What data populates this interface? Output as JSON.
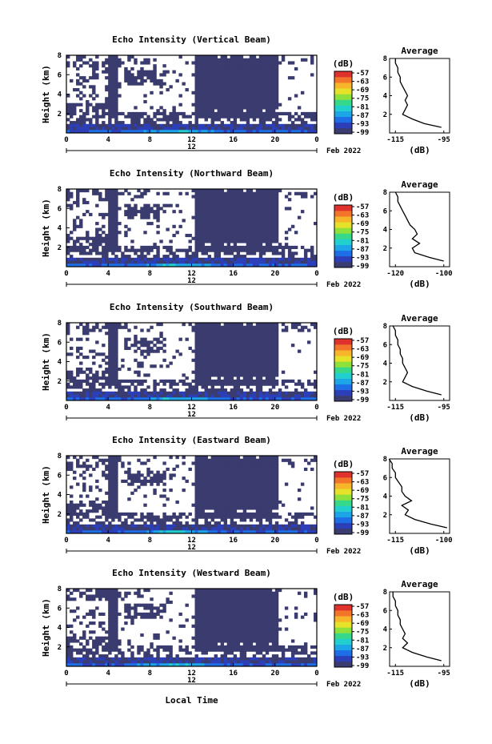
{
  "figure": {
    "xlabel": "Local Time",
    "date_label": "Feb 2022",
    "day_label": "12",
    "avg_title": "Average",
    "unit_label": "(dB)",
    "colormap": [
      "#3a3b6e",
      "#2c3fb8",
      "#1e6fe6",
      "#1ca6e8",
      "#22cfcf",
      "#36d88a",
      "#8ee03a",
      "#e6e22a",
      "#f7b52a",
      "#f2752a",
      "#e0322c"
    ]
  },
  "chart_data": [
    {
      "type": "heatmap",
      "title": "Echo Intensity (Vertical Beam)",
      "ylabel": "Height (km)",
      "xlim": [
        0,
        24
      ],
      "ylim": [
        0,
        8
      ],
      "xticks": [
        "0",
        "4",
        "8",
        "12",
        "16",
        "20",
        "0"
      ],
      "yticks": [
        "2",
        "4",
        "6",
        "8"
      ],
      "colorbar_ticks": [
        "-57",
        "-63",
        "-69",
        "-75",
        "-81",
        "-87",
        "-93",
        "-99"
      ],
      "avg_xticks": [
        "-115",
        "-95"
      ],
      "avg_yticks": [
        "2",
        "4",
        "6",
        "8"
      ],
      "avg_profile": {
        "height_km": [
          0.6,
          1.0,
          1.5,
          2.0,
          2.5,
          3.0,
          3.5,
          4.0,
          4.5,
          5.0,
          5.5,
          6.0,
          6.5,
          7.0,
          7.5,
          8.0
        ],
        "db": [
          -96,
          -103,
          -108,
          -112,
          -111,
          -110,
          -111,
          -110,
          -111,
          -112,
          -113,
          -113,
          -114,
          -114,
          -115,
          -115
        ]
      }
    },
    {
      "type": "heatmap",
      "title": "Echo Intensity (Northward Beam)",
      "ylabel": "Height (km)",
      "xlim": [
        0,
        24
      ],
      "ylim": [
        0,
        8
      ],
      "xticks": [
        "0",
        "4",
        "8",
        "12",
        "16",
        "20",
        "0"
      ],
      "yticks": [
        "2",
        "4",
        "6",
        "8"
      ],
      "colorbar_ticks": [
        "-57",
        "-63",
        "-69",
        "-75",
        "-81",
        "-87",
        "-93",
        "-99"
      ],
      "avg_xticks": [
        "-120",
        "-100"
      ],
      "avg_yticks": [
        "2",
        "4",
        "6",
        "8"
      ],
      "avg_profile": {
        "height_km": [
          0.6,
          1.0,
          1.5,
          2.0,
          2.5,
          3.0,
          3.5,
          4.0,
          4.5,
          5.0,
          5.5,
          6.0,
          6.5,
          7.0,
          7.5,
          8.0
        ],
        "db": [
          -100,
          -106,
          -112,
          -113,
          -110,
          -113,
          -111,
          -112,
          -114,
          -115,
          -116,
          -117,
          -118,
          -119,
          -119,
          -120
        ]
      }
    },
    {
      "type": "heatmap",
      "title": "Echo Intensity (Southward Beam)",
      "ylabel": "Height (km)",
      "xlim": [
        0,
        24
      ],
      "ylim": [
        0,
        8
      ],
      "xticks": [
        "0",
        "4",
        "8",
        "12",
        "16",
        "20",
        "0"
      ],
      "yticks": [
        "2",
        "4",
        "6",
        "8"
      ],
      "colorbar_ticks": [
        "-57",
        "-63",
        "-69",
        "-75",
        "-81",
        "-87",
        "-93",
        "-99"
      ],
      "avg_xticks": [
        "-115",
        "-95"
      ],
      "avg_yticks": [
        "2",
        "4",
        "6",
        "8"
      ],
      "avg_profile": {
        "height_km": [
          0.6,
          1.0,
          1.5,
          2.0,
          2.5,
          3.0,
          3.5,
          4.0,
          4.5,
          5.0,
          5.5,
          6.0,
          6.5,
          7.0,
          7.5,
          8.0
        ],
        "db": [
          -96,
          -102,
          -108,
          -112,
          -111,
          -110,
          -111,
          -112,
          -112,
          -113,
          -113,
          -114,
          -114,
          -115,
          -115,
          -116
        ]
      }
    },
    {
      "type": "heatmap",
      "title": "Echo Intensity (Eastward Beam)",
      "ylabel": "Height (km)",
      "xlim": [
        0,
        24
      ],
      "ylim": [
        0,
        8
      ],
      "xticks": [
        "0",
        "4",
        "8",
        "12",
        "16",
        "20",
        "0"
      ],
      "yticks": [
        "2",
        "4",
        "6",
        "8"
      ],
      "colorbar_ticks": [
        "-57",
        "-63",
        "-69",
        "-75",
        "-81",
        "-87",
        "-93",
        "-99"
      ],
      "avg_xticks": [
        "-115",
        "-100"
      ],
      "avg_yticks": [
        "2",
        "4",
        "6",
        "8"
      ],
      "avg_profile": {
        "height_km": [
          0.6,
          1.0,
          1.5,
          2.0,
          2.5,
          3.0,
          3.5,
          4.0,
          4.5,
          5.0,
          5.5,
          6.0,
          6.5,
          7.0,
          7.5,
          8.0
        ],
        "db": [
          -99,
          -104,
          -109,
          -112,
          -111,
          -113,
          -110,
          -112,
          -113,
          -113,
          -114,
          -115,
          -115,
          -116,
          -116,
          -117
        ]
      }
    },
    {
      "type": "heatmap",
      "title": "Echo Intensity (Westward Beam)",
      "ylabel": "Height (km)",
      "xlim": [
        0,
        24
      ],
      "ylim": [
        0,
        8
      ],
      "xticks": [
        "0",
        "4",
        "8",
        "12",
        "16",
        "20",
        "0"
      ],
      "yticks": [
        "2",
        "4",
        "6",
        "8"
      ],
      "colorbar_ticks": [
        "-57",
        "-63",
        "-69",
        "-75",
        "-81",
        "-87",
        "-93",
        "-99"
      ],
      "avg_xticks": [
        "-115",
        "-95"
      ],
      "avg_yticks": [
        "2",
        "4",
        "6",
        "8"
      ],
      "avg_profile": {
        "height_km": [
          0.6,
          1.0,
          1.5,
          2.0,
          2.5,
          3.0,
          3.5,
          4.0,
          4.5,
          5.0,
          5.5,
          6.0,
          6.5,
          7.0,
          7.5,
          8.0
        ],
        "db": [
          -96,
          -102,
          -108,
          -112,
          -110,
          -112,
          -111,
          -112,
          -113,
          -113,
          -114,
          -114,
          -115,
          -115,
          -116,
          -116
        ]
      }
    }
  ]
}
